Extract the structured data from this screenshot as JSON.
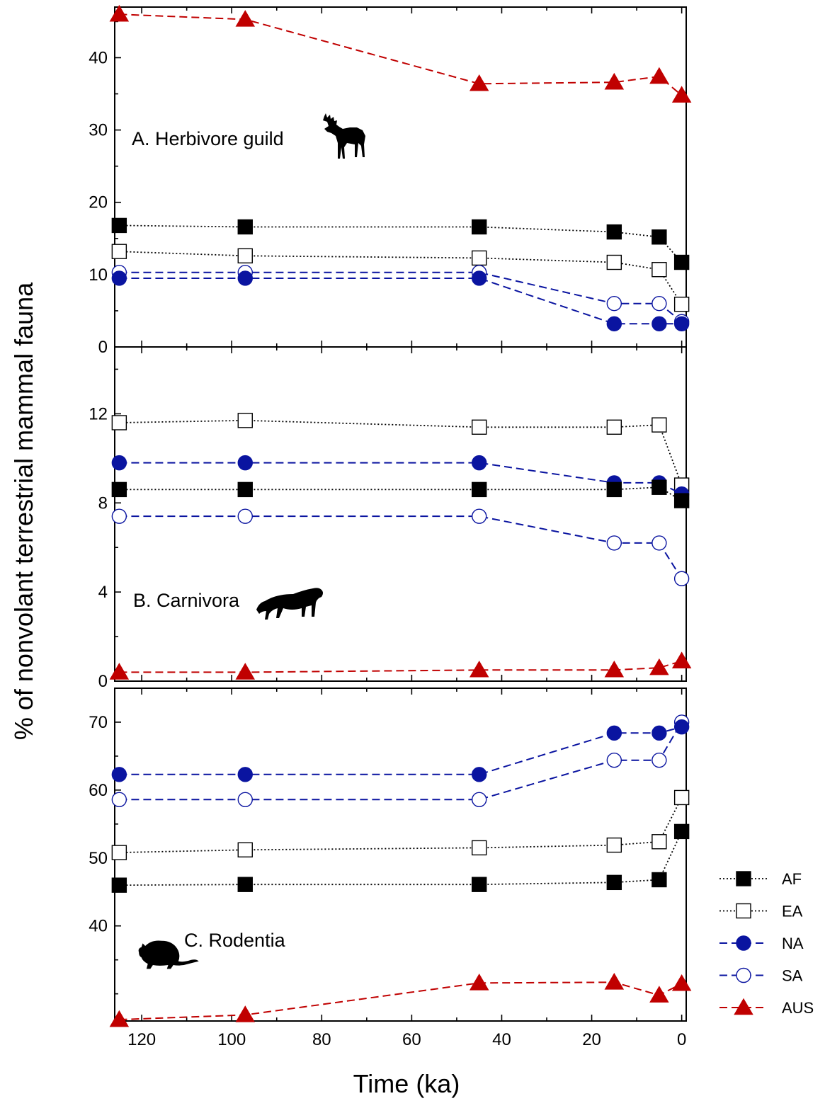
{
  "chart_data": {
    "type": "line",
    "xlabel": "Time (ka)",
    "ylabel": "% of nonvolant terrestrial mammal fauna",
    "x_reversed": true,
    "xlim": [
      126,
      -1
    ],
    "x_ticks": [
      120,
      100,
      80,
      60,
      40,
      20,
      0
    ],
    "x": [
      125,
      97,
      45,
      15,
      5,
      0
    ],
    "series_styles": {
      "AF": {
        "marker": "square",
        "filled": true,
        "color": "#000000",
        "line": "dotted"
      },
      "EA": {
        "marker": "square",
        "filled": false,
        "color": "#000000",
        "line": "dotted"
      },
      "NA": {
        "marker": "circle",
        "filled": true,
        "color": "#0a14a0",
        "line": "dashed"
      },
      "SA": {
        "marker": "circle",
        "filled": false,
        "color": "#0a14a0",
        "line": "dashed"
      },
      "AUS": {
        "marker": "triangle",
        "filled": true,
        "color": "#c00000",
        "line": "dashed"
      }
    },
    "legend": {
      "placement": "right of bottom panel",
      "entries": [
        "AF",
        "EA",
        "NA",
        "SA",
        "AUS"
      ]
    },
    "panels": [
      {
        "title": "A. Herbivore guild",
        "icon": "moose-icon",
        "ylim": [
          0,
          47
        ],
        "y_ticks": [
          0,
          10,
          20,
          30,
          40
        ],
        "series": [
          {
            "name": "AUS",
            "values": [
              46.0,
              45.3,
              36.4,
              36.6,
              37.4,
              34.8
            ]
          },
          {
            "name": "AF",
            "values": [
              16.8,
              16.6,
              16.6,
              15.9,
              15.2,
              11.7
            ]
          },
          {
            "name": "EA",
            "values": [
              13.2,
              12.6,
              12.3,
              11.7,
              10.7,
              5.9
            ]
          },
          {
            "name": "SA",
            "values": [
              10.3,
              10.3,
              10.3,
              6.0,
              6.0,
              3.5
            ]
          },
          {
            "name": "NA",
            "values": [
              9.5,
              9.5,
              9.5,
              3.2,
              3.2,
              3.2
            ]
          }
        ]
      },
      {
        "title": "B. Carnivora",
        "icon": "cougar-icon",
        "ylim": [
          0,
          15
        ],
        "y_ticks": [
          0,
          4,
          8,
          12
        ],
        "series": [
          {
            "name": "EA",
            "values": [
              11.6,
              11.7,
              11.4,
              11.4,
              11.5,
              8.8
            ]
          },
          {
            "name": "NA",
            "values": [
              9.8,
              9.8,
              9.8,
              8.9,
              8.9,
              8.4
            ]
          },
          {
            "name": "AF",
            "values": [
              8.6,
              8.6,
              8.6,
              8.6,
              8.7,
              8.1
            ]
          },
          {
            "name": "SA",
            "values": [
              7.4,
              7.4,
              7.4,
              6.2,
              6.2,
              4.6
            ]
          },
          {
            "name": "AUS",
            "values": [
              0.4,
              0.4,
              0.5,
              0.5,
              0.6,
              0.9
            ]
          }
        ]
      },
      {
        "title": "C. Rodentia",
        "icon": "rodent-icon",
        "ylim": [
          26,
          75
        ],
        "y_ticks": [
          40,
          50,
          60,
          70
        ],
        "series": [
          {
            "name": "SA",
            "values": [
              58.6,
              58.6,
              58.6,
              64.4,
              64.4,
              70.0
            ]
          },
          {
            "name": "NA",
            "values": [
              62.3,
              62.3,
              62.3,
              68.4,
              68.4,
              69.3
            ]
          },
          {
            "name": "EA",
            "values": [
              50.8,
              51.2,
              51.5,
              51.9,
              52.4,
              58.9
            ]
          },
          {
            "name": "AF",
            "values": [
              46.0,
              46.1,
              46.1,
              46.4,
              46.8,
              53.9
            ]
          },
          {
            "name": "AUS",
            "values": [
              26.2,
              26.9,
              31.6,
              31.7,
              29.8,
              31.5
            ]
          }
        ]
      }
    ]
  }
}
